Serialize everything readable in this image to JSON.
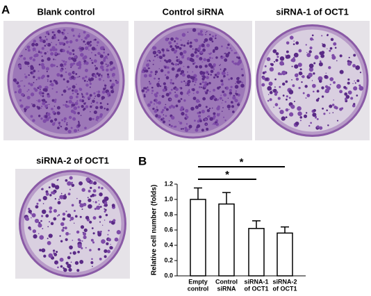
{
  "panels": {
    "A": "A",
    "B": "B"
  },
  "photos": [
    "Blank control",
    "Control siRNA",
    "siRNA-1 of OCT1",
    "siRNA-2 of OCT1"
  ],
  "chart_data": {
    "type": "bar",
    "y_label": "Relative cell number (folds)",
    "categories": [
      [
        "Empty",
        "control"
      ],
      [
        "Control",
        "siRNA"
      ],
      [
        "siRNA-1",
        "of OCT1"
      ],
      [
        "siRNA-2",
        "of OCT1"
      ]
    ],
    "values": [
      1.0,
      0.94,
      0.62,
      0.56
    ],
    "errors": [
      0.15,
      0.15,
      0.1,
      0.08
    ],
    "color": "#ffffff",
    "ylim": [
      0,
      1.2
    ],
    "yticks": [
      {
        "value": 0,
        "label": "0.0"
      },
      0.2,
      0.4,
      0.6,
      0.8,
      {
        "value": 1,
        "label": "1.0"
      },
      1.2
    ],
    "significance": [
      {
        "from": 0,
        "to": 3,
        "label": "*"
      },
      {
        "from": 0,
        "to": 2,
        "label": "*"
      }
    ]
  }
}
